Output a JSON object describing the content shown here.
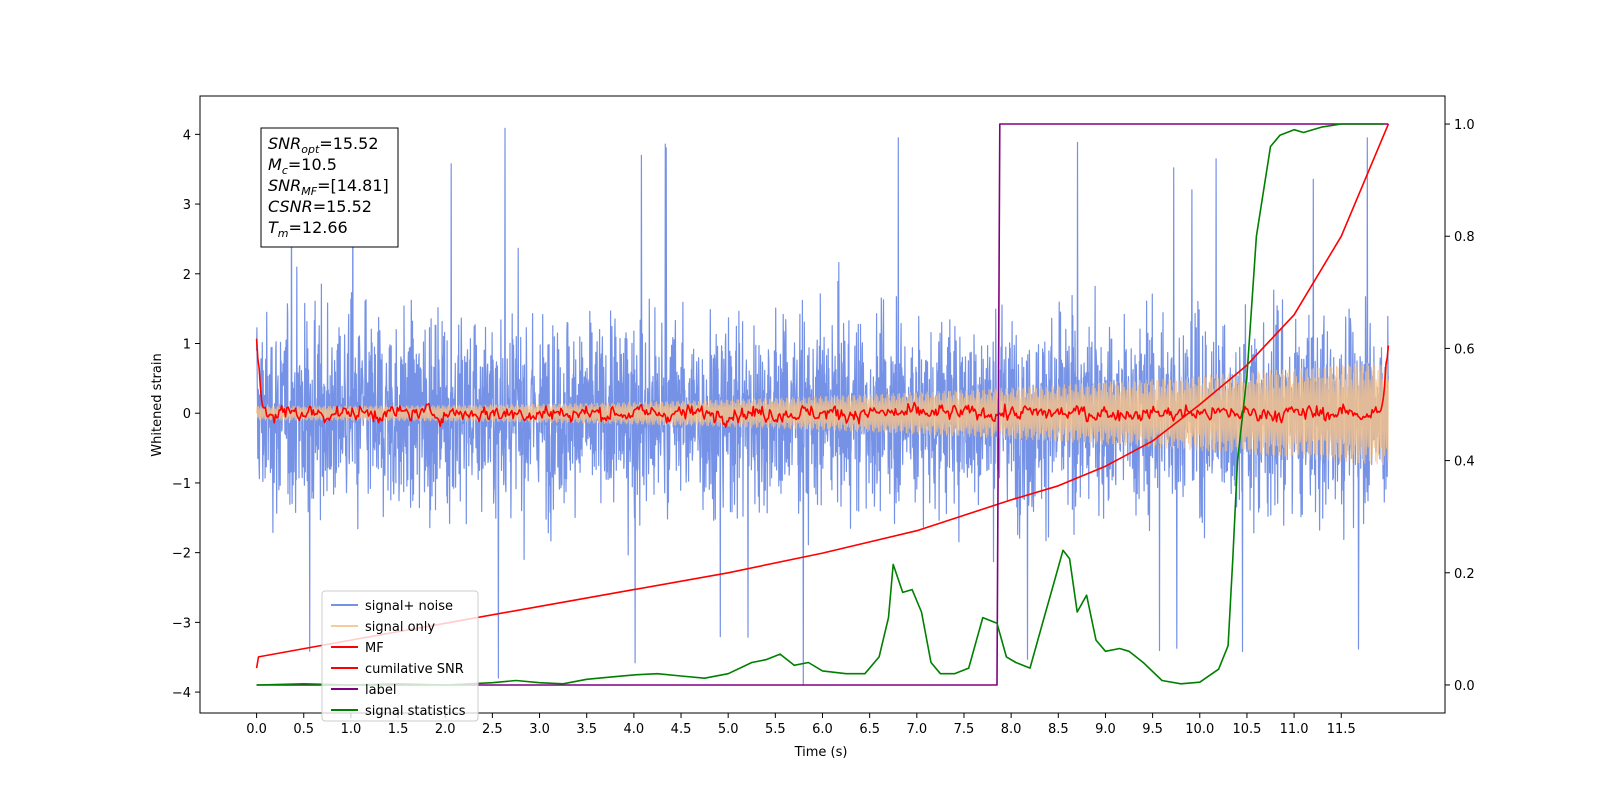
{
  "chart_data": {
    "type": "line",
    "title": "",
    "xlabel": "Time (s)",
    "ylabel": "Whitened strain",
    "y2label": "",
    "xlim": [
      -0.6,
      12.6
    ],
    "ylim": [
      -4.3,
      4.55
    ],
    "y2lim": [
      -0.05,
      1.05
    ],
    "x_ticks": [
      "0.0",
      "0.5",
      "1.0",
      "1.5",
      "2.0",
      "2.5",
      "3.0",
      "3.5",
      "4.0",
      "4.5",
      "5.0",
      "5.5",
      "6.0",
      "6.5",
      "7.0",
      "7.5",
      "8.0",
      "8.5",
      "9.0",
      "9.5",
      "10.0",
      "10.5",
      "11.0",
      "11.5"
    ],
    "y_ticks": [
      "4",
      "3",
      "2",
      "1",
      "0",
      "−1",
      "−2",
      "−3",
      "−4"
    ],
    "y2_ticks": [
      "1.0",
      "0.8",
      "0.6",
      "0.4",
      "0.2",
      "0.0"
    ],
    "grid": false,
    "legend_position": "lower-left",
    "annotation_lines": [
      {
        "base": "SNR",
        "sub": "opt",
        "value": "=15.52"
      },
      {
        "base": "M",
        "sub": "c",
        "value": "=10.5"
      },
      {
        "base": "SNR",
        "sub": "MF",
        "value": "=[14.81]"
      },
      {
        "base": "CSNR",
        "sub": "",
        "value": "=15.52"
      },
      {
        "base": "T",
        "sub": "m",
        "value": "=12.66"
      }
    ],
    "series": [
      {
        "name": "signal+ noise",
        "color": "#7592e6",
        "axis": "left",
        "style": "noise",
        "x_range": [
          0,
          12.0
        ],
        "typical_extent": [
          -2.5,
          2.5
        ],
        "peak_extent": [
          -3.9,
          4.18
        ]
      },
      {
        "name": "signal only",
        "color": "#f5c28b",
        "axis": "left",
        "style": "chirp",
        "x_range": [
          0,
          12.0
        ],
        "amplitude_start": 0.1,
        "amplitude_end": 0.75
      },
      {
        "name": "MF",
        "color": "#ff0000",
        "axis": "left",
        "style": "line",
        "x": [
          0,
          0.05,
          0.1,
          11.9,
          11.95,
          12.0
        ],
        "y": [
          1.0,
          0.2,
          0.0,
          0.0,
          0.2,
          1.0
        ],
        "noise_amplitude": 0.08
      },
      {
        "name": "cumilative SNR",
        "color": "#ff0000",
        "axis": "right",
        "x": [
          0,
          0.02,
          1,
          2,
          3,
          4,
          5,
          6,
          7,
          8,
          8.5,
          9,
          9.5,
          10,
          10.5,
          11,
          11.5,
          12.0
        ],
        "y": [
          0.03,
          0.05,
          0.08,
          0.11,
          0.14,
          0.17,
          0.2,
          0.235,
          0.275,
          0.33,
          0.355,
          0.39,
          0.435,
          0.5,
          0.57,
          0.66,
          0.8,
          1.0
        ]
      },
      {
        "name": "label",
        "color": "#800080",
        "axis": "right",
        "x": [
          0,
          7.85,
          7.88,
          12.0
        ],
        "y": [
          0.0,
          0.0,
          1.0,
          1.0
        ]
      },
      {
        "name": "signal statistics",
        "color": "#008000",
        "axis": "right",
        "x": [
          0,
          0.5,
          1.0,
          1.5,
          2.0,
          2.5,
          2.75,
          3.0,
          3.25,
          3.5,
          3.75,
          4.0,
          4.25,
          4.5,
          4.75,
          5.0,
          5.25,
          5.4,
          5.55,
          5.7,
          5.85,
          6.0,
          6.25,
          6.45,
          6.6,
          6.7,
          6.75,
          6.85,
          6.95,
          7.05,
          7.15,
          7.25,
          7.4,
          7.55,
          7.7,
          7.85,
          7.95,
          8.05,
          8.2,
          8.35,
          8.45,
          8.55,
          8.62,
          8.7,
          8.8,
          8.9,
          9.0,
          9.15,
          9.25,
          9.4,
          9.6,
          9.8,
          10.0,
          10.2,
          10.3,
          10.35,
          10.4,
          10.5,
          10.6,
          10.75,
          10.85,
          11.0,
          11.1,
          11.3,
          11.5,
          11.8,
          11.95
        ],
        "y": [
          0.0,
          0.002,
          0.0,
          0.002,
          0.0,
          0.004,
          0.008,
          0.004,
          0.002,
          0.01,
          0.014,
          0.018,
          0.02,
          0.016,
          0.012,
          0.02,
          0.04,
          0.045,
          0.055,
          0.035,
          0.04,
          0.025,
          0.02,
          0.02,
          0.05,
          0.12,
          0.215,
          0.165,
          0.17,
          0.13,
          0.04,
          0.02,
          0.02,
          0.03,
          0.12,
          0.11,
          0.05,
          0.04,
          0.03,
          0.12,
          0.18,
          0.24,
          0.225,
          0.13,
          0.16,
          0.08,
          0.06,
          0.065,
          0.06,
          0.04,
          0.008,
          0.002,
          0.005,
          0.028,
          0.07,
          0.225,
          0.4,
          0.55,
          0.8,
          0.96,
          0.98,
          0.99,
          0.985,
          0.995,
          1.0,
          1.0,
          1.0
        ]
      }
    ]
  }
}
